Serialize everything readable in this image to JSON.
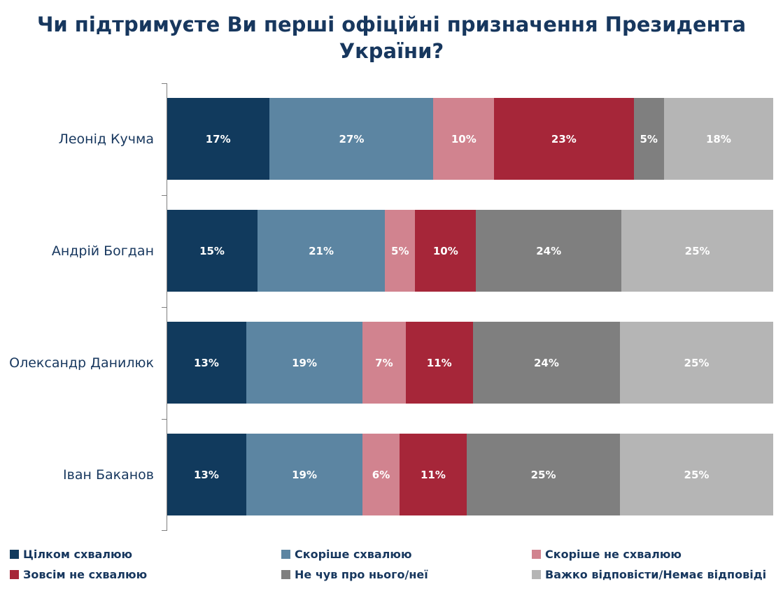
{
  "title": "Чи підтримуєте Ви перші офіційні призначення Президента України?",
  "chart_data": {
    "type": "bar",
    "orientation": "horizontal",
    "stacked": true,
    "value_suffix": "%",
    "xlim": [
      0,
      100
    ],
    "grid": false,
    "legend_position": "bottom",
    "categories": [
      "Леонід Кучма",
      "Андрій Богдан",
      "Олександр Данилюк",
      "Іван Баканов"
    ],
    "series": [
      {
        "name": "Цілком схвалюю",
        "color": "#113A5D",
        "values": [
          17,
          15,
          13,
          13
        ]
      },
      {
        "name": "Скоріше схвалюю",
        "color": "#5C85A2",
        "values": [
          27,
          21,
          19,
          19
        ]
      },
      {
        "name": "Скоріше не схвалюю",
        "color": "#D1838F",
        "values": [
          10,
          5,
          7,
          6
        ]
      },
      {
        "name": "Зовсім не схвалюю",
        "color": "#A62639",
        "values": [
          23,
          10,
          11,
          11
        ]
      },
      {
        "name": "Не чув про нього/неї",
        "color": "#7F7F7F",
        "values": [
          5,
          24,
          24,
          25
        ]
      },
      {
        "name": "Важко відповісти/Немає відповіді",
        "color": "#B5B5B5",
        "values": [
          18,
          25,
          25,
          25
        ]
      }
    ]
  },
  "colors": {
    "title_text": "#17375E",
    "axis": "#7F7F7F",
    "value_label": "#FFFFFF"
  }
}
